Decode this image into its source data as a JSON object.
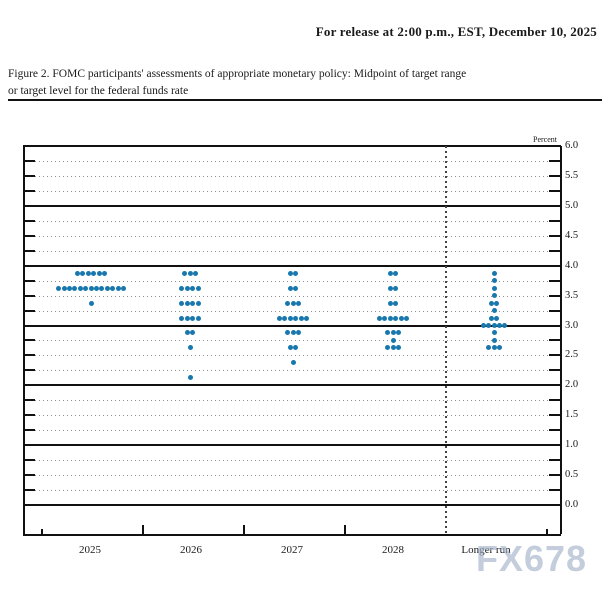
{
  "header": {
    "release_line": "For release at 2:00 p.m., EST, December 10, 2025",
    "figure_caption_line1": "Figure 2. FOMC participants' assessments of appropriate monetary policy: Midpoint of target range",
    "figure_caption_line2": "or target level for the federal funds rate"
  },
  "watermark": "FX678",
  "chart_data": {
    "type": "scatter",
    "subtype": "fomc-dot-plot",
    "title": "Figure 2. FOMC participants' assessments of appropriate monetary policy: Midpoint of target range or target level for the federal funds rate",
    "ylabel": "Percent",
    "ylim": [
      0.0,
      6.0
    ],
    "y_tick_step_labels": 0.5,
    "y_grid_step": 0.25,
    "grid": "dotted gray line every 0.25 pct, solid black line at each integer pct; dotted vertical separator before Longer run",
    "legend": "none",
    "dot_color": "#1878ae",
    "y_tick_labels": [
      "6.0",
      "5.5",
      "5.0",
      "4.5",
      "4.0",
      "3.5",
      "3.0",
      "2.5",
      "2.0",
      "1.5",
      "1.0",
      "0.5",
      "0.0"
    ],
    "categories": [
      "2025",
      "2026",
      "2027",
      "2028",
      "Longer run"
    ],
    "columns": [
      {
        "label": "2025",
        "rows": [
          {
            "rate": 3.875,
            "count": 6
          },
          {
            "rate": 3.625,
            "count": 13
          },
          {
            "rate": 3.375,
            "count": 1
          }
        ]
      },
      {
        "label": "2026",
        "rows": [
          {
            "rate": 3.875,
            "count": 3
          },
          {
            "rate": 3.625,
            "count": 4
          },
          {
            "rate": 3.375,
            "count": 4
          },
          {
            "rate": 3.125,
            "count": 4
          },
          {
            "rate": 2.875,
            "count": 2
          },
          {
            "rate": 2.625,
            "count": 1
          },
          {
            "rate": 2.125,
            "count": 1
          }
        ]
      },
      {
        "label": "2027",
        "rows": [
          {
            "rate": 3.875,
            "count": 2
          },
          {
            "rate": 3.625,
            "count": 2
          },
          {
            "rate": 3.375,
            "count": 3
          },
          {
            "rate": 3.125,
            "count": 6
          },
          {
            "rate": 2.875,
            "count": 3
          },
          {
            "rate": 2.625,
            "count": 2
          },
          {
            "rate": 2.375,
            "count": 1
          }
        ]
      },
      {
        "label": "2028",
        "rows": [
          {
            "rate": 3.875,
            "count": 2
          },
          {
            "rate": 3.625,
            "count": 2
          },
          {
            "rate": 3.375,
            "count": 2
          },
          {
            "rate": 3.125,
            "count": 6
          },
          {
            "rate": 2.875,
            "count": 3
          },
          {
            "rate": 2.75,
            "count": 1
          },
          {
            "rate": 2.625,
            "count": 3
          }
        ]
      },
      {
        "label": "Longer run",
        "rows": [
          {
            "rate": 3.875,
            "count": 1
          },
          {
            "rate": 3.75,
            "count": 1
          },
          {
            "rate": 3.625,
            "count": 1
          },
          {
            "rate": 3.5,
            "count": 1
          },
          {
            "rate": 3.375,
            "count": 2
          },
          {
            "rate": 3.25,
            "count": 1
          },
          {
            "rate": 3.125,
            "count": 2
          },
          {
            "rate": 3.0,
            "count": 5
          },
          {
            "rate": 2.875,
            "count": 1
          },
          {
            "rate": 2.75,
            "count": 1
          },
          {
            "rate": 2.625,
            "count": 3
          }
        ]
      }
    ]
  }
}
